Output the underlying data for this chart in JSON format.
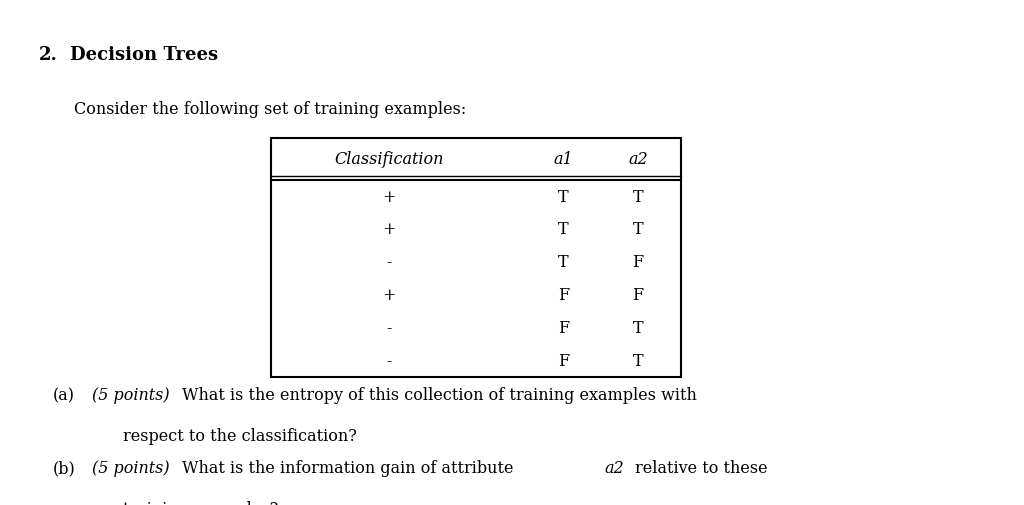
{
  "title_num": "2.",
  "title_text": "Decision Trees",
  "subtitle": "Consider the following set of training examples:",
  "table_header": [
    "Classification",
    "a1",
    "a2"
  ],
  "table_rows": [
    [
      "+",
      "T",
      "T"
    ],
    [
      "+",
      "T",
      "T"
    ],
    [
      "-",
      "T",
      "F"
    ],
    [
      "+",
      "F",
      "F"
    ],
    [
      "-",
      "F",
      "T"
    ],
    [
      "-",
      "F",
      "T"
    ]
  ],
  "question_a_label": "(a)",
  "question_a_points": "(5 points)",
  "question_a_line1": "What is the entropy of this collection of training examples with",
  "question_a_line2": "respect to the classification?",
  "question_b_label": "(b)",
  "question_b_points": "(5 points)",
  "question_b_line1_pre": "What is the information gain of attribute",
  "question_b_attr": "a2",
  "question_b_line1_post": "relative to these",
  "question_b_line2": "training examples?",
  "bg_color": "#ffffff",
  "text_color": "#000000",
  "title_fontsize": 13,
  "body_fontsize": 11.5
}
